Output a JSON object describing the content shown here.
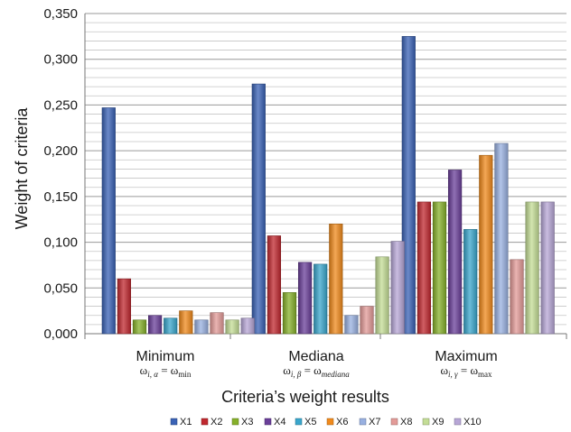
{
  "chart_data": {
    "type": "bar",
    "title": "",
    "xlabel": "Criteria’s weight results",
    "ylabel": "Weight of criteria",
    "ylim": [
      0,
      0.35
    ],
    "yticks": [
      "0,000",
      "0,050",
      "0,100",
      "0,150",
      "0,200",
      "0,250",
      "0,300",
      "0,350"
    ],
    "ytick_values": [
      0,
      0.05,
      0.1,
      0.15,
      0.2,
      0.25,
      0.3,
      0.35
    ],
    "grid": true,
    "legend_position": "bottom",
    "categories": [
      "Minimum",
      "Mediana",
      "Maximum"
    ],
    "category_formulas": [
      {
        "lhs": "ω",
        "lsub": "i, α",
        "rhs": "ω",
        "rsub": "min",
        "rsub_italic": false
      },
      {
        "lhs": "ω",
        "lsub": "i, β",
        "rhs": "ω",
        "rsub": "mediana",
        "rsub_italic": true
      },
      {
        "lhs": "ω",
        "lsub": "i, γ",
        "rhs": "ω",
        "rsub": "max",
        "rsub_italic": false
      }
    ],
    "series": [
      {
        "name": "X1",
        "color": "#3a62b5",
        "values": [
          0.247,
          0.273,
          0.325
        ]
      },
      {
        "name": "X2",
        "color": "#c0282f",
        "values": [
          0.06,
          0.107,
          0.144
        ]
      },
      {
        "name": "X3",
        "color": "#86b02a",
        "values": [
          0.015,
          0.045,
          0.144
        ]
      },
      {
        "name": "X4",
        "color": "#6a3f99",
        "values": [
          0.02,
          0.078,
          0.179
        ]
      },
      {
        "name": "X5",
        "color": "#3aa6cc",
        "values": [
          0.017,
          0.076,
          0.114
        ]
      },
      {
        "name": "X6",
        "color": "#f08a1c",
        "values": [
          0.025,
          0.12,
          0.195
        ]
      },
      {
        "name": "X7",
        "color": "#98b0e0",
        "values": [
          0.015,
          0.02,
          0.208
        ]
      },
      {
        "name": "X8",
        "color": "#e39b98",
        "values": [
          0.023,
          0.03,
          0.081
        ]
      },
      {
        "name": "X9",
        "color": "#c4dd96",
        "values": [
          0.015,
          0.084,
          0.144
        ]
      },
      {
        "name": "X10",
        "color": "#b7a6d6",
        "values": [
          0.017,
          0.101,
          0.144
        ]
      }
    ]
  }
}
